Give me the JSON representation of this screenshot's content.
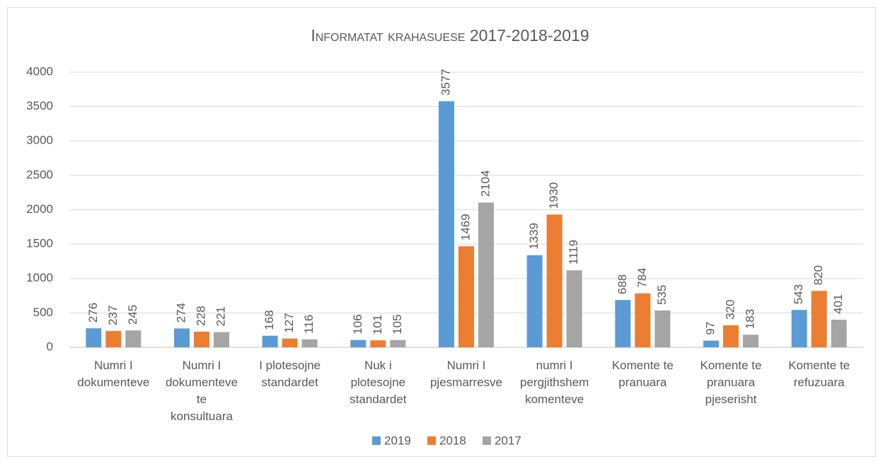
{
  "chart_data": {
    "type": "bar",
    "title": "Informatat krahasuese 2017-2018-2019",
    "categories": [
      "Numri I dokumenteve",
      "Numri I dokumenteve te konsultuara",
      "I plotesojne standardet",
      "Nuk i plotesojne standardet",
      "Numri I pjesmarresve",
      "numri I pergjithshem komenteve",
      "Komente te pranuara",
      "Komente te pranuara pjeserisht",
      "Komente te refuzuara"
    ],
    "series": [
      {
        "name": "2019",
        "color": "#5b9bd5",
        "values": [
          276,
          274,
          168,
          106,
          3577,
          1339,
          688,
          97,
          543
        ]
      },
      {
        "name": "2018",
        "color": "#ed7d31",
        "values": [
          237,
          228,
          127,
          101,
          1469,
          1930,
          784,
          320,
          820
        ]
      },
      {
        "name": "2017",
        "color": "#a5a5a5",
        "values": [
          245,
          221,
          116,
          105,
          2104,
          1119,
          535,
          183,
          401
        ]
      }
    ],
    "ylim": [
      0,
      4000
    ],
    "yticks": [
      0,
      500,
      1000,
      1500,
      2000,
      2500,
      3000,
      3500,
      4000
    ],
    "grid": true,
    "legend": "bottom"
  }
}
